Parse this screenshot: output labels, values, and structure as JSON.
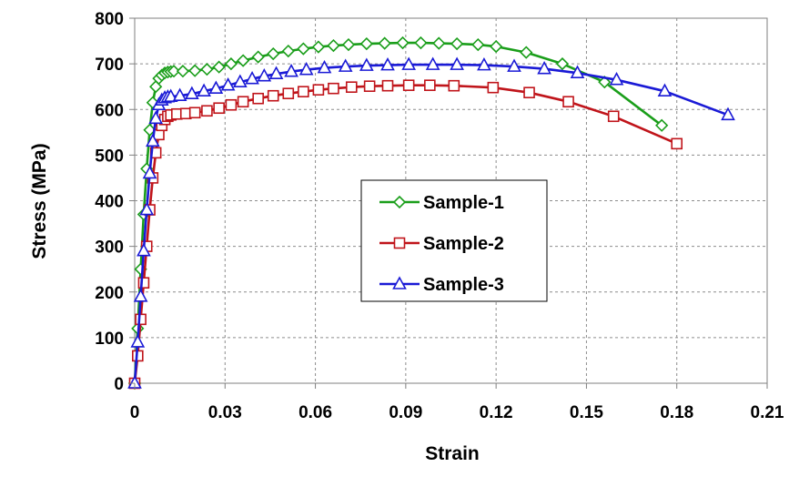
{
  "chart_data": {
    "type": "line",
    "xlabel": "Strain",
    "ylabel": "Stress (MPa)",
    "xlim": [
      0,
      0.21
    ],
    "ylim": [
      0,
      800
    ],
    "xticks": [
      "0",
      "0.03",
      "0.06",
      "0.09",
      "0.12",
      "0.15",
      "0.18",
      "0.21"
    ],
    "yticks": [
      "0",
      "100",
      "200",
      "300",
      "400",
      "500",
      "600",
      "700",
      "800"
    ],
    "grid": "dashed",
    "legend_position": "center",
    "series": [
      {
        "name": "Sample-1",
        "color": "#1a9e1a",
        "marker": "diamond",
        "x": [
          0,
          0.001,
          0.002,
          0.003,
          0.004,
          0.005,
          0.006,
          0.007,
          0.008,
          0.009,
          0.01,
          0.011,
          0.012,
          0.013,
          0.016,
          0.02,
          0.024,
          0.028,
          0.032,
          0.036,
          0.041,
          0.046,
          0.051,
          0.056,
          0.061,
          0.066,
          0.071,
          0.077,
          0.083,
          0.089,
          0.095,
          0.101,
          0.107,
          0.114,
          0.12,
          0.13,
          0.142,
          0.156,
          0.175
        ],
        "y": [
          0,
          120,
          250,
          370,
          470,
          555,
          615,
          650,
          668,
          675,
          680,
          682,
          683,
          684,
          684,
          685,
          688,
          693,
          700,
          707,
          715,
          722,
          728,
          733,
          737,
          740,
          742,
          744,
          745,
          746,
          746,
          745,
          744,
          742,
          738,
          725,
          700,
          660,
          565
        ]
      },
      {
        "name": "Sample-2",
        "color": "#c0141a",
        "marker": "square",
        "x": [
          0,
          0.001,
          0.002,
          0.003,
          0.004,
          0.005,
          0.006,
          0.007,
          0.008,
          0.009,
          0.01,
          0.011,
          0.012,
          0.014,
          0.017,
          0.02,
          0.024,
          0.028,
          0.032,
          0.036,
          0.041,
          0.046,
          0.051,
          0.056,
          0.061,
          0.066,
          0.072,
          0.078,
          0.084,
          0.091,
          0.098,
          0.106,
          0.119,
          0.131,
          0.144,
          0.159,
          0.18
        ],
        "y": [
          0,
          60,
          140,
          220,
          300,
          380,
          450,
          505,
          545,
          565,
          578,
          585,
          588,
          590,
          591,
          593,
          597,
          603,
          610,
          617,
          624,
          630,
          635,
          639,
          643,
          646,
          649,
          651,
          652,
          653,
          653,
          652,
          648,
          637,
          617,
          585,
          525
        ]
      },
      {
        "name": "Sample-3",
        "color": "#1a1ad6",
        "marker": "triangle",
        "x": [
          0,
          0.001,
          0.002,
          0.003,
          0.004,
          0.005,
          0.006,
          0.007,
          0.008,
          0.009,
          0.01,
          0.011,
          0.012,
          0.015,
          0.019,
          0.023,
          0.027,
          0.031,
          0.035,
          0.039,
          0.043,
          0.047,
          0.052,
          0.057,
          0.063,
          0.07,
          0.077,
          0.084,
          0.091,
          0.099,
          0.107,
          0.116,
          0.126,
          0.136,
          0.147,
          0.16,
          0.176,
          0.197
        ],
        "y": [
          0,
          90,
          190,
          290,
          380,
          460,
          530,
          580,
          610,
          620,
          625,
          627,
          628,
          630,
          634,
          640,
          646,
          653,
          660,
          667,
          673,
          678,
          683,
          687,
          691,
          694,
          696,
          697,
          698,
          698,
          698,
          697,
          694,
          689,
          680,
          665,
          640,
          588
        ]
      }
    ]
  }
}
